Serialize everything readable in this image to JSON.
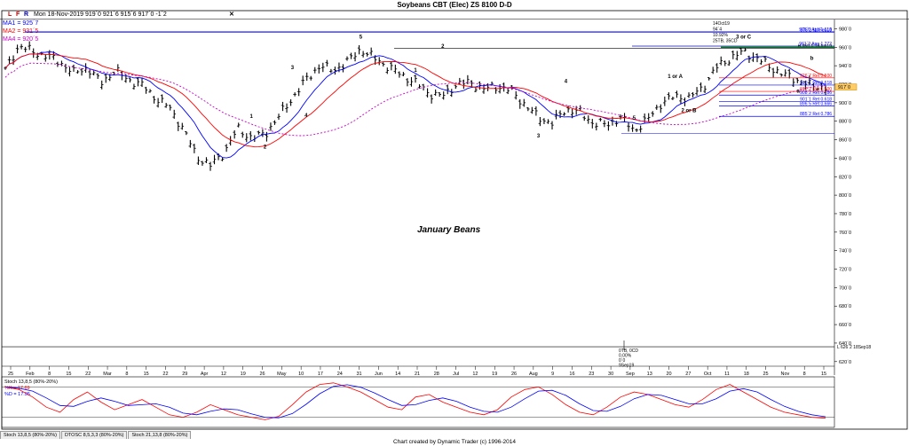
{
  "window": {
    "title": "Soybeans CBT (Elec) ZS 8100 D-D"
  },
  "toolbar": {
    "letters": [
      "L",
      "F",
      "R"
    ],
    "letter_colors": [
      "#c00000",
      "#c00000",
      "#0000c0"
    ],
    "quote": "Mon 18-Nov-2019   919´0   921´6   915´6   917´0   -1´2",
    "close_icon": "x-icon"
  },
  "legend": {
    "ma1": "MA1 = 925´7",
    "ma2": "MA2 = 931´5",
    "ma4": "MA4 = 920´5",
    "ma1_color": "#0000ff",
    "ma2_color": "#ff0000",
    "ma4_color": "#cc00cc"
  },
  "annotations": {
    "info_block": [
      "14Oct19",
      "94´4",
      "10.92%",
      "25TB, 35CD"
    ],
    "low_info_block": [
      "0TB, 0CD",
      "0.00%",
      "0´0",
      "9Sep19"
    ],
    "chart_label": "January Beans",
    "wave_labels": [
      "1",
      "2",
      "3",
      "4",
      "5",
      "1",
      "2",
      "3",
      "4",
      "5",
      "1 or A",
      "2 or B",
      "3 or C",
      "a",
      "b"
    ],
    "fib_labels": [
      "976´6 App 1.618",
      "976´2 (17Feb19",
      "961´2 App 1.272",
      "H 959´0 18Jun19",
      "926´7 Ret 0.500",
      "919´1 Ret 0.618",
      "912´2 Ret 0.500",
      "908´2 Ret 0.786",
      "908´2 Ret 0.500",
      "901´1 Ret 0.618",
      "896´5 Ret 0.666",
      "885´2 Ret 0.786"
    ],
    "fib_colors": [
      "#0000ff",
      "#ff0000"
    ],
    "low_label": "L 626´2 18Sep18",
    "last_price": "917´0"
  },
  "chart_data": [
    {
      "type": "candlestick",
      "title": "Soybeans CBT (Elec) ZS 8100 D-D",
      "ylim": [
        615,
        990
      ],
      "y_ticks": [
        "980´0",
        "960´0",
        "940´0",
        "920´0",
        "900´0",
        "880´0",
        "860´0",
        "840´0",
        "820´0",
        "800´0",
        "780´0",
        "760´0",
        "740´0",
        "720´0",
        "700´0",
        "680´0",
        "660´0",
        "640´0",
        "620´0"
      ],
      "x_ticks": [
        "25",
        "Feb",
        "8",
        "15",
        "22",
        "Mar",
        "8",
        "15",
        "22",
        "29",
        "Apr",
        "12",
        "19",
        "26",
        "May",
        "10",
        "17",
        "24",
        "31",
        "Jun",
        "14",
        "21",
        "28",
        "Jul",
        "12",
        "19",
        "26",
        "Aug",
        "9",
        "16",
        "23",
        "30",
        "Sep",
        "13",
        "20",
        "27",
        "Oct",
        "11",
        "18",
        "25",
        "Nov",
        "8",
        "15"
      ],
      "series": [
        {
          "name": "MA1",
          "color": "#0000ff"
        },
        {
          "name": "MA2",
          "color": "#ff0000"
        },
        {
          "name": "MA4",
          "color": "#cc00cc"
        }
      ],
      "close_path": [
        935,
        962,
        955,
        951,
        944,
        932,
        938,
        921,
        935,
        925,
        919,
        905,
        895,
        872,
        842,
        832,
        846,
        872,
        862,
        866,
        885,
        905,
        925,
        940,
        935,
        944,
        958,
        948,
        939,
        930,
        922,
        910,
        907,
        920,
        922,
        915,
        918,
        913,
        898,
        884,
        878,
        893,
        890,
        878,
        876,
        884,
        870,
        882,
        900,
        907,
        905,
        916,
        938,
        948,
        955,
        948,
        938,
        930,
        924,
        918,
        917
      ],
      "wave_points": [
        {
          "label": "1",
          "x_index": 18,
          "value": 872
        },
        {
          "label": "2",
          "x_index": 19,
          "value": 866
        },
        {
          "label": "3",
          "x_index": 21,
          "value": 925
        },
        {
          "label": "4",
          "x_index": 22,
          "value": 900
        },
        {
          "label": "5",
          "x_index": 26,
          "value": 958
        },
        {
          "label": "1",
          "x_index": 30,
          "value": 922
        },
        {
          "label": "2",
          "x_index": 32,
          "value": 948
        },
        {
          "label": "3",
          "x_index": 39,
          "value": 878
        },
        {
          "label": "4",
          "x_index": 41,
          "value": 910
        },
        {
          "label": "5",
          "x_index": 46,
          "value": 870
        },
        {
          "label": "1 or A",
          "x_index": 49,
          "value": 915
        },
        {
          "label": "2 or B",
          "x_index": 50,
          "value": 905
        },
        {
          "label": "3 or C",
          "x_index": 54,
          "value": 958
        },
        {
          "label": "a",
          "x_index": 58,
          "value": 926
        },
        {
          "label": "b",
          "x_index": 59,
          "value": 935
        }
      ],
      "horizontal_levels": [
        {
          "label": "976´6 App 1.618",
          "value": 976.75,
          "color": "#0000ff"
        },
        {
          "label": "976´2 (17Feb19",
          "value": 976.25,
          "color": "#0000ff"
        },
        {
          "label": "961´2 App 1.272",
          "value": 961.25,
          "color": "#0000ff"
        },
        {
          "label": "H 959´0 18Jun19",
          "value": 959,
          "color": "#000000"
        },
        {
          "label": "926´7 Ret 0.500",
          "value": 926.9,
          "color": "#ff0000"
        },
        {
          "label": "919´1 Ret 0.618",
          "value": 919.1,
          "color": "#0000ff"
        },
        {
          "label": "912´2 Ret 0.500",
          "value": 912.25,
          "color": "#ff0000"
        },
        {
          "label": "908´2 Ret 0.786",
          "value": 908.25,
          "color": "#0000ff"
        },
        {
          "label": "901´1 Ret 0.618",
          "value": 901.1,
          "color": "#0000ff"
        },
        {
          "label": "896´5 Ret 0.666",
          "value": 896.6,
          "color": "#0000ff"
        },
        {
          "label": "885´2 Ret 0.786",
          "value": 885.25,
          "color": "#0000ff"
        }
      ]
    },
    {
      "type": "line",
      "title": "Stoch 13,8,5 (80%-20%)",
      "ylim": [
        0,
        100
      ],
      "levels": [
        80,
        20
      ],
      "series": [
        {
          "name": "%K",
          "label": "%K = 17.69",
          "color": "#ff0000"
        },
        {
          "name": "%D",
          "label": "%D = 17.95",
          "color": "#0000ff"
        }
      ],
      "k_values": [
        80,
        75,
        60,
        40,
        30,
        55,
        70,
        50,
        35,
        45,
        55,
        40,
        25,
        20,
        30,
        45,
        35,
        25,
        20,
        15,
        22,
        45,
        70,
        85,
        88,
        80,
        70,
        55,
        40,
        35,
        60,
        65,
        50,
        40,
        30,
        25,
        35,
        60,
        75,
        80,
        65,
        45,
        30,
        25,
        40,
        60,
        70,
        65,
        55,
        45,
        40,
        55,
        75,
        85,
        70,
        55,
        40,
        30,
        25,
        20,
        18
      ]
    }
  ],
  "tabs": [
    "Stoch 13,8,5 (80%-20%)",
    "DTOSC 8,5,3,3 (80%-20%)",
    "Stoch 21,13,8 (80%-20%)"
  ],
  "footer": {
    "credit": "Chart created by Dynamic Trader  (c)  1996-2014"
  }
}
